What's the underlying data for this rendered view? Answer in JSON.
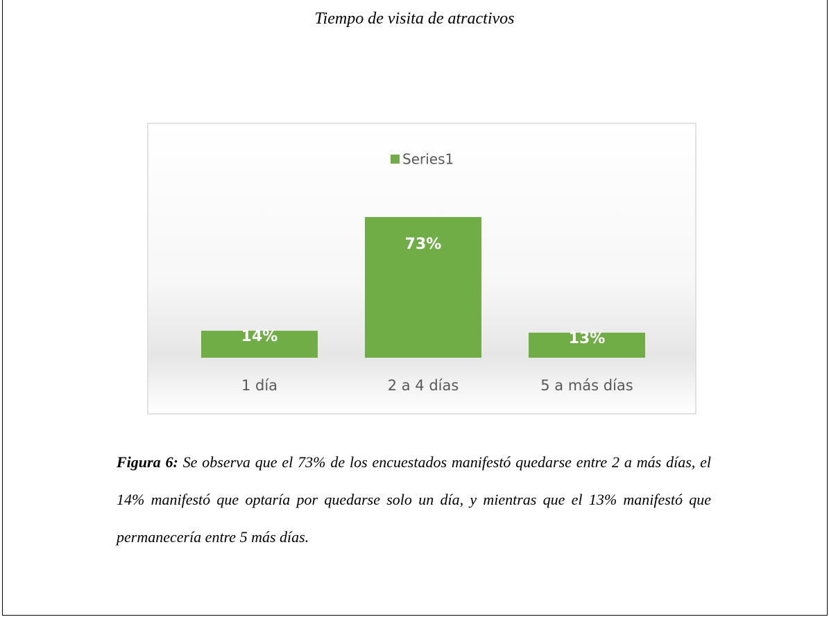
{
  "chart_data": {
    "type": "bar",
    "title": "Tiempo de visita de atractivos",
    "categories": [
      "1 día",
      "2 a 4 días",
      "5 a más días"
    ],
    "series": [
      {
        "name": "Series1",
        "color": "#70ad47",
        "values": [
          14,
          73,
          13
        ],
        "value_labels": [
          "14%",
          "73%",
          "13%"
        ]
      }
    ],
    "legend": "top"
  },
  "caption": {
    "label": "Figura 6:",
    "text": " Se observa que el 73% de los encuestados manifestó quedarse entre 2 a más días, el 14% manifestó que optaría por quedarse solo un día, y mientras que el 13% manifestó que permanecería entre 5 más días."
  }
}
